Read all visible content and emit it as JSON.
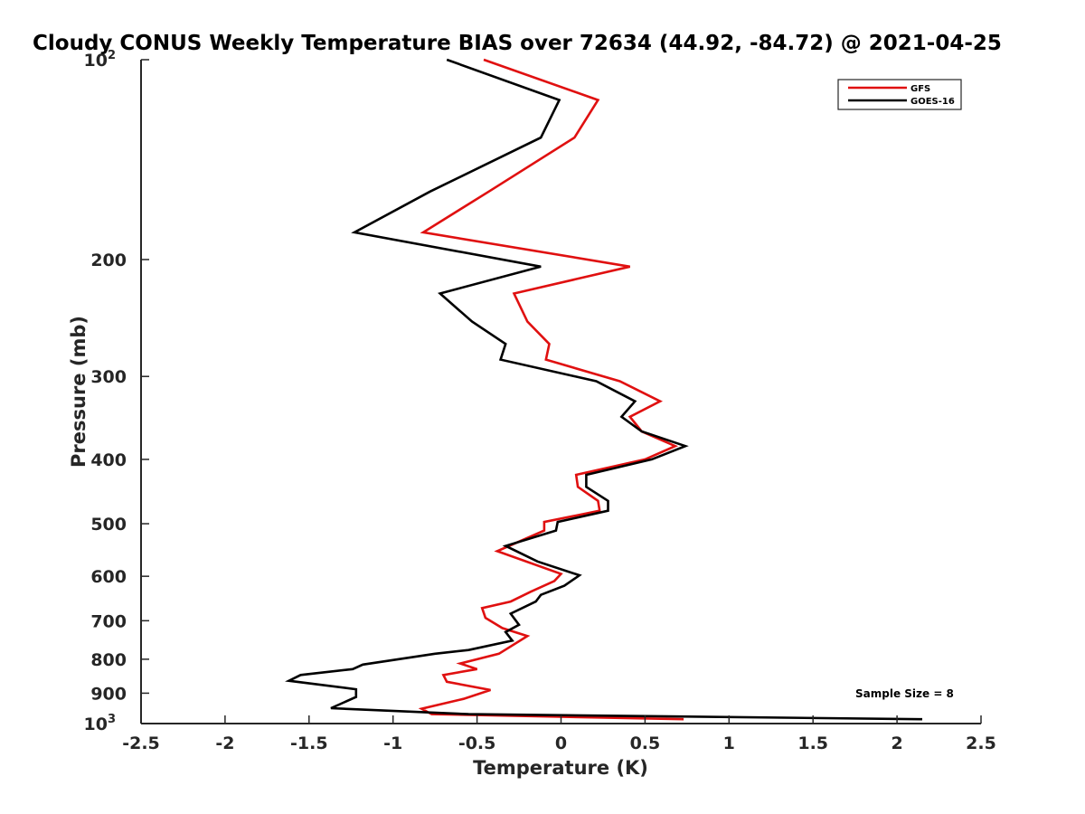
{
  "chart_data": {
    "type": "line",
    "title": "Cloudy CONUS Weekly Temperature BIAS over 72634 (44.92, -84.72) @ 2021-04-25",
    "xlabel": "Temperature (K)",
    "ylabel": "Pressure (mb)",
    "xlim": [
      -2.5,
      2.5
    ],
    "ylim": [
      100,
      1000
    ],
    "y_scale": "log",
    "y_reversed": true,
    "x_ticks": [
      "-2.5",
      "-2",
      "-1.5",
      "-1",
      "-0.5",
      "0",
      "0.5",
      "1",
      "1.5",
      "2",
      "2.5"
    ],
    "x_tick_values": [
      -2.5,
      -2,
      -1.5,
      -1,
      -0.5,
      0,
      0.5,
      1,
      1.5,
      2,
      2.5
    ],
    "y_ticks": [
      {
        "value": 100,
        "base": "10",
        "exp": "2"
      },
      {
        "value": 200,
        "label": "200"
      },
      {
        "value": 300,
        "label": "300"
      },
      {
        "value": 400,
        "label": "400"
      },
      {
        "value": 500,
        "label": "500"
      },
      {
        "value": 600,
        "label": "600"
      },
      {
        "value": 700,
        "label": "700"
      },
      {
        "value": 800,
        "label": "800"
      },
      {
        "value": 900,
        "label": "900"
      },
      {
        "value": 1000,
        "base": "10",
        "exp": "3"
      }
    ],
    "grid": false,
    "legend": {
      "position": "top-right",
      "entries": [
        "GFS",
        "GOES-16"
      ]
    },
    "annotation": "Sample Size = 8",
    "series": [
      {
        "name": "GFS",
        "color": "#e01010",
        "points": [
          [
            -0.46,
            100
          ],
          [
            0.22,
            115
          ],
          [
            0.08,
            131
          ],
          [
            -0.43,
            158
          ],
          [
            -0.82,
            182
          ],
          [
            0.41,
            205
          ],
          [
            -0.28,
            225
          ],
          [
            -0.2,
            248
          ],
          [
            -0.07,
            268
          ],
          [
            -0.09,
            283
          ],
          [
            0.35,
            305
          ],
          [
            0.59,
            327
          ],
          [
            0.41,
            345
          ],
          [
            0.48,
            363
          ],
          [
            0.68,
            382
          ],
          [
            0.5,
            400
          ],
          [
            0.09,
            422
          ],
          [
            0.1,
            440
          ],
          [
            0.22,
            462
          ],
          [
            0.23,
            478
          ],
          [
            -0.1,
            497
          ],
          [
            -0.1,
            512
          ],
          [
            -0.38,
            550
          ],
          [
            0.0,
            595
          ],
          [
            -0.04,
            610
          ],
          [
            -0.18,
            633
          ],
          [
            -0.3,
            655
          ],
          [
            -0.47,
            670
          ],
          [
            -0.45,
            693
          ],
          [
            -0.35,
            718
          ],
          [
            -0.2,
            738
          ],
          [
            -0.37,
            785
          ],
          [
            -0.6,
            812
          ],
          [
            -0.5,
            828
          ],
          [
            -0.7,
            845
          ],
          [
            -0.68,
            865
          ],
          [
            -0.42,
            890
          ],
          [
            -0.58,
            918
          ],
          [
            -0.83,
            950
          ],
          [
            -0.77,
            968
          ],
          [
            0.73,
            985
          ]
        ]
      },
      {
        "name": "GOES-16",
        "color": "#000000",
        "points": [
          [
            -0.68,
            100
          ],
          [
            -0.01,
            115
          ],
          [
            -0.12,
            131
          ],
          [
            -0.78,
            158
          ],
          [
            -1.23,
            182
          ],
          [
            -0.12,
            205
          ],
          [
            -0.72,
            225
          ],
          [
            -0.53,
            248
          ],
          [
            -0.33,
            268
          ],
          [
            -0.36,
            283
          ],
          [
            0.21,
            305
          ],
          [
            0.44,
            327
          ],
          [
            0.36,
            345
          ],
          [
            0.48,
            363
          ],
          [
            0.74,
            382
          ],
          [
            0.54,
            400
          ],
          [
            0.15,
            422
          ],
          [
            0.15,
            440
          ],
          [
            0.28,
            462
          ],
          [
            0.28,
            478
          ],
          [
            -0.02,
            497
          ],
          [
            -0.03,
            512
          ],
          [
            -0.33,
            540
          ],
          [
            -0.14,
            570
          ],
          [
            0.11,
            598
          ],
          [
            0.02,
            620
          ],
          [
            -0.12,
            640
          ],
          [
            -0.15,
            655
          ],
          [
            -0.3,
            683
          ],
          [
            -0.25,
            710
          ],
          [
            -0.33,
            728
          ],
          [
            -0.29,
            750
          ],
          [
            -0.55,
            775
          ],
          [
            -0.75,
            785
          ],
          [
            -1.18,
            815
          ],
          [
            -1.24,
            828
          ],
          [
            -1.55,
            845
          ],
          [
            -1.62,
            862
          ],
          [
            -1.22,
            888
          ],
          [
            -1.22,
            912
          ],
          [
            -1.37,
            948
          ],
          [
            -0.55,
            968
          ],
          [
            2.15,
            985
          ]
        ]
      }
    ]
  }
}
